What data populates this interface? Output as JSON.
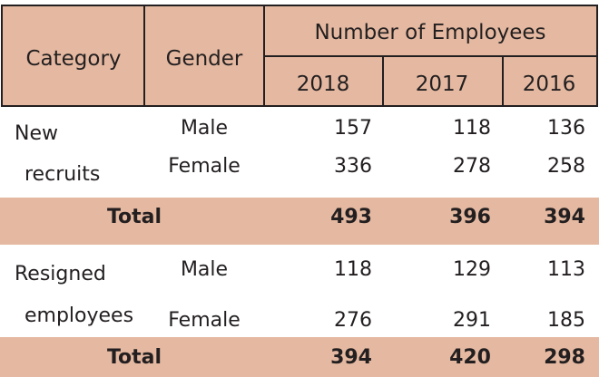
{
  "table": {
    "header": {
      "category": "Category",
      "gender": "Gender",
      "group": "Number of Employees",
      "years": [
        "2018",
        "2017",
        "2016"
      ]
    },
    "sections": [
      {
        "category_lines": [
          "New",
          "recruits"
        ],
        "rows": [
          {
            "gender": "Male",
            "values": [
              "157",
              "118",
              "136"
            ]
          },
          {
            "gender": "Female",
            "values": [
              "336",
              "278",
              "258"
            ]
          }
        ],
        "total": {
          "label": "Total",
          "values": [
            "493",
            "396",
            "394"
          ]
        }
      },
      {
        "category_lines": [
          "Resigned",
          "employees"
        ],
        "rows": [
          {
            "gender": "Male",
            "values": [
              "118",
              "129",
              "113"
            ]
          },
          {
            "gender": "Female",
            "values": [
              "276",
              "291",
              "185"
            ]
          }
        ],
        "total": {
          "label": "Total",
          "values": [
            "394",
            "420",
            "298"
          ]
        }
      }
    ]
  },
  "colors": {
    "header_fill": "#e5b9a1",
    "total_fill": "#e5b9a1",
    "border": "#231f20",
    "text": "#231f20"
  }
}
